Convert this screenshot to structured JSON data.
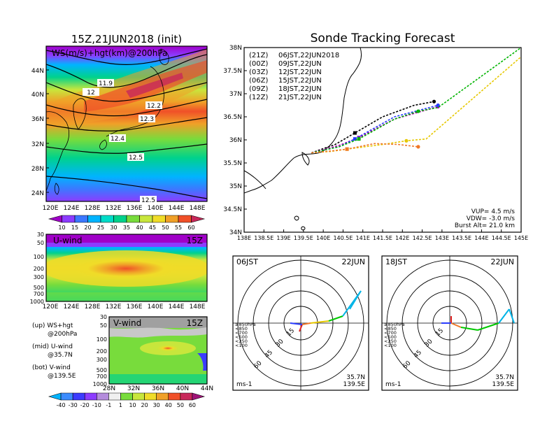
{
  "left_panel": {
    "title": "15Z,21JUN2018 (init)",
    "map_label": "WS(m/s)+hgt(km)@200hPa",
    "lat_ticks": [
      "44N",
      "40N",
      "36N",
      "32N",
      "28N",
      "24N"
    ],
    "lon_ticks": [
      "120E",
      "124E",
      "128E",
      "132E",
      "136E",
      "140E",
      "144E",
      "148E"
    ],
    "contour_labels": [
      "11.9",
      "12",
      "12.2",
      "12.3",
      "12.4",
      "12.5",
      "12.5"
    ],
    "colorbar_ticks": [
      "10",
      "15",
      "20",
      "25",
      "30",
      "35",
      "40",
      "45",
      "50",
      "55",
      "60"
    ],
    "colorbar_colors": [
      "#a000c8",
      "#8c3cff",
      "#3c78ff",
      "#00b4ff",
      "#00dcc8",
      "#00d28c",
      "#78dc3c",
      "#c8e63c",
      "#f0dc28",
      "#f0a028",
      "#f05028",
      "#c8285a"
    ]
  },
  "uwind": {
    "label": "U-wind",
    "time": "15Z",
    "p_ticks": [
      "30",
      "50",
      "100",
      "200",
      "300",
      "500",
      "700",
      "1000"
    ],
    "lon_ticks": [
      "120E",
      "124E",
      "128E",
      "132E",
      "136E",
      "140E",
      "144E",
      "148E"
    ]
  },
  "vwind": {
    "label": "V-wind",
    "time": "15Z",
    "p_ticks": [
      "30",
      "50",
      "100",
      "200",
      "300",
      "500",
      "700",
      "1000"
    ],
    "lat_ticks": [
      "28N",
      "32N",
      "36N",
      "40N",
      "44N"
    ]
  },
  "legend_notes": [
    {
      "line1": "(up) WS+hgt",
      "line2": "@200hPa"
    },
    {
      "line1": "(mid) U-wind",
      "line2": "@35.7N"
    },
    {
      "line1": "(bot) V-wind",
      "line2": "@139.5E"
    }
  ],
  "bottom_colorbar": {
    "ticks": [
      "-40",
      "-30",
      "-20",
      "-10",
      "-1",
      "1",
      "10",
      "20",
      "30",
      "40",
      "50",
      "60"
    ],
    "colors": [
      "#00b4ff",
      "#3c8cff",
      "#3c3cff",
      "#8c3cff",
      "#b48cdc",
      "#f0f0f0",
      "#78dc3c",
      "#c8e63c",
      "#f0dc28",
      "#f0a028",
      "#f05028",
      "#c8285a",
      "#a01478"
    ]
  },
  "tracking": {
    "title": "Sonde Tracking Forecast",
    "lat_ticks": [
      "38N",
      "37.5N",
      "37N",
      "36.5N",
      "36N",
      "35.5N",
      "35N",
      "34.5N",
      "34N"
    ],
    "lon_ticks": [
      "138E",
      "138.5E",
      "139E",
      "139.5E",
      "140E",
      "140.5E",
      "141E",
      "141.5E",
      "142E",
      "142.5E",
      "143E",
      "143.5E",
      "144E",
      "144.5E",
      "145E"
    ],
    "legend": [
      {
        "code": "(21Z)",
        "time": "06JST,22JUN2018",
        "color": "#000000"
      },
      {
        "code": "(00Z)",
        "time": "09JST,22JUN",
        "color": "#b000b0"
      },
      {
        "code": "(03Z)",
        "time": "12JST,22JUN",
        "color": "#2a3cff"
      },
      {
        "code": "(06Z)",
        "time": "15JST,22JUN",
        "color": "#00b400"
      },
      {
        "code": "(09Z)",
        "time": "18JST,22JUN",
        "color": "#e6c800"
      },
      {
        "code": "(12Z)",
        "time": "21JST,22JUN",
        "color": "#f07828"
      }
    ],
    "params": [
      "VUP= 4.5 m/s",
      "VDW= -3.0 m/s",
      "Burst Alt= 21.0 km"
    ]
  },
  "hodo_left": {
    "time_label": "06JST",
    "date_label": "22JUN",
    "ring_labels": [
      "15",
      "30",
      "45",
      "60"
    ],
    "level_legend": [
      "≥850hPa",
      "<850",
      "<700",
      "<500",
      "<250",
      "<100"
    ],
    "level_colors": [
      "#e02020",
      "#f07828",
      "#e6c800",
      "#00c800",
      "#00b4e6",
      "#2a3cff"
    ],
    "unit": "ms-1",
    "lat": "35.7N",
    "lon": "139.5E"
  },
  "hodo_right": {
    "time_label": "18JST",
    "date_label": "22JUN",
    "ring_labels": [
      "15",
      "30",
      "45",
      "60"
    ],
    "level_legend": [
      "≥850hPa",
      "<850",
      "<700",
      "<500",
      "<250",
      "<100"
    ],
    "level_colors": [
      "#e02020",
      "#f07828",
      "#e6c800",
      "#00c800",
      "#00b4e6",
      "#2a3cff"
    ],
    "unit": "ms-1",
    "lat": "35.7N",
    "lon": "139.5E"
  },
  "chart_data": [
    {
      "type": "heatmap",
      "title": "15Z,21JUN2018 (init)",
      "label": "WS(m/s)+hgt(km)@200hPa",
      "x_range_deg_E": [
        120,
        148
      ],
      "y_range_deg_N": [
        22,
        47
      ],
      "contour_values_km": [
        11.9,
        12,
        12.2,
        12.3,
        12.4,
        12.5,
        12.5
      ],
      "colorbar": [
        10,
        15,
        20,
        25,
        30,
        35,
        40,
        45,
        50,
        55,
        60
      ]
    },
    {
      "type": "line",
      "title": "Sonde Tracking Forecast",
      "xlim": [
        138,
        145
      ],
      "ylim": [
        34,
        38
      ],
      "series": [
        {
          "name": "06JST,22JUN2018",
          "x": [
            139.7,
            140.3,
            140.8,
            141.5,
            142.3,
            142.8
          ],
          "y": [
            35.72,
            35.9,
            36.15,
            36.5,
            36.75,
            36.83
          ]
        },
        {
          "name": "09JST,22JUN",
          "x": [
            139.7,
            140.4,
            140.9,
            141.8,
            142.9
          ],
          "y": [
            35.72,
            35.88,
            36.05,
            36.45,
            36.72
          ]
        },
        {
          "name": "12JST,22JUN",
          "x": [
            139.7,
            140.4,
            140.8,
            141.8,
            142.9
          ],
          "y": [
            35.72,
            35.85,
            36.02,
            36.5,
            36.75
          ]
        },
        {
          "name": "15JST,22JUN",
          "x": [
            139.7,
            140.4,
            140.9,
            141.8,
            142.4,
            142.9,
            145.0
          ],
          "y": [
            35.72,
            35.85,
            36.02,
            36.45,
            36.62,
            36.7,
            38.0
          ]
        },
        {
          "name": "18JST,22JUN",
          "x": [
            139.7,
            140.2,
            140.6,
            141.5,
            142.1,
            142.6,
            145.0
          ],
          "y": [
            35.72,
            35.75,
            35.8,
            35.9,
            35.98,
            36.02,
            37.8
          ]
        },
        {
          "name": "21JST,22JUN",
          "x": [
            139.7,
            140.2,
            140.6,
            141.3,
            141.9,
            142.4
          ],
          "y": [
            35.72,
            35.76,
            35.8,
            35.92,
            35.9,
            35.85
          ]
        }
      ]
    }
  ]
}
